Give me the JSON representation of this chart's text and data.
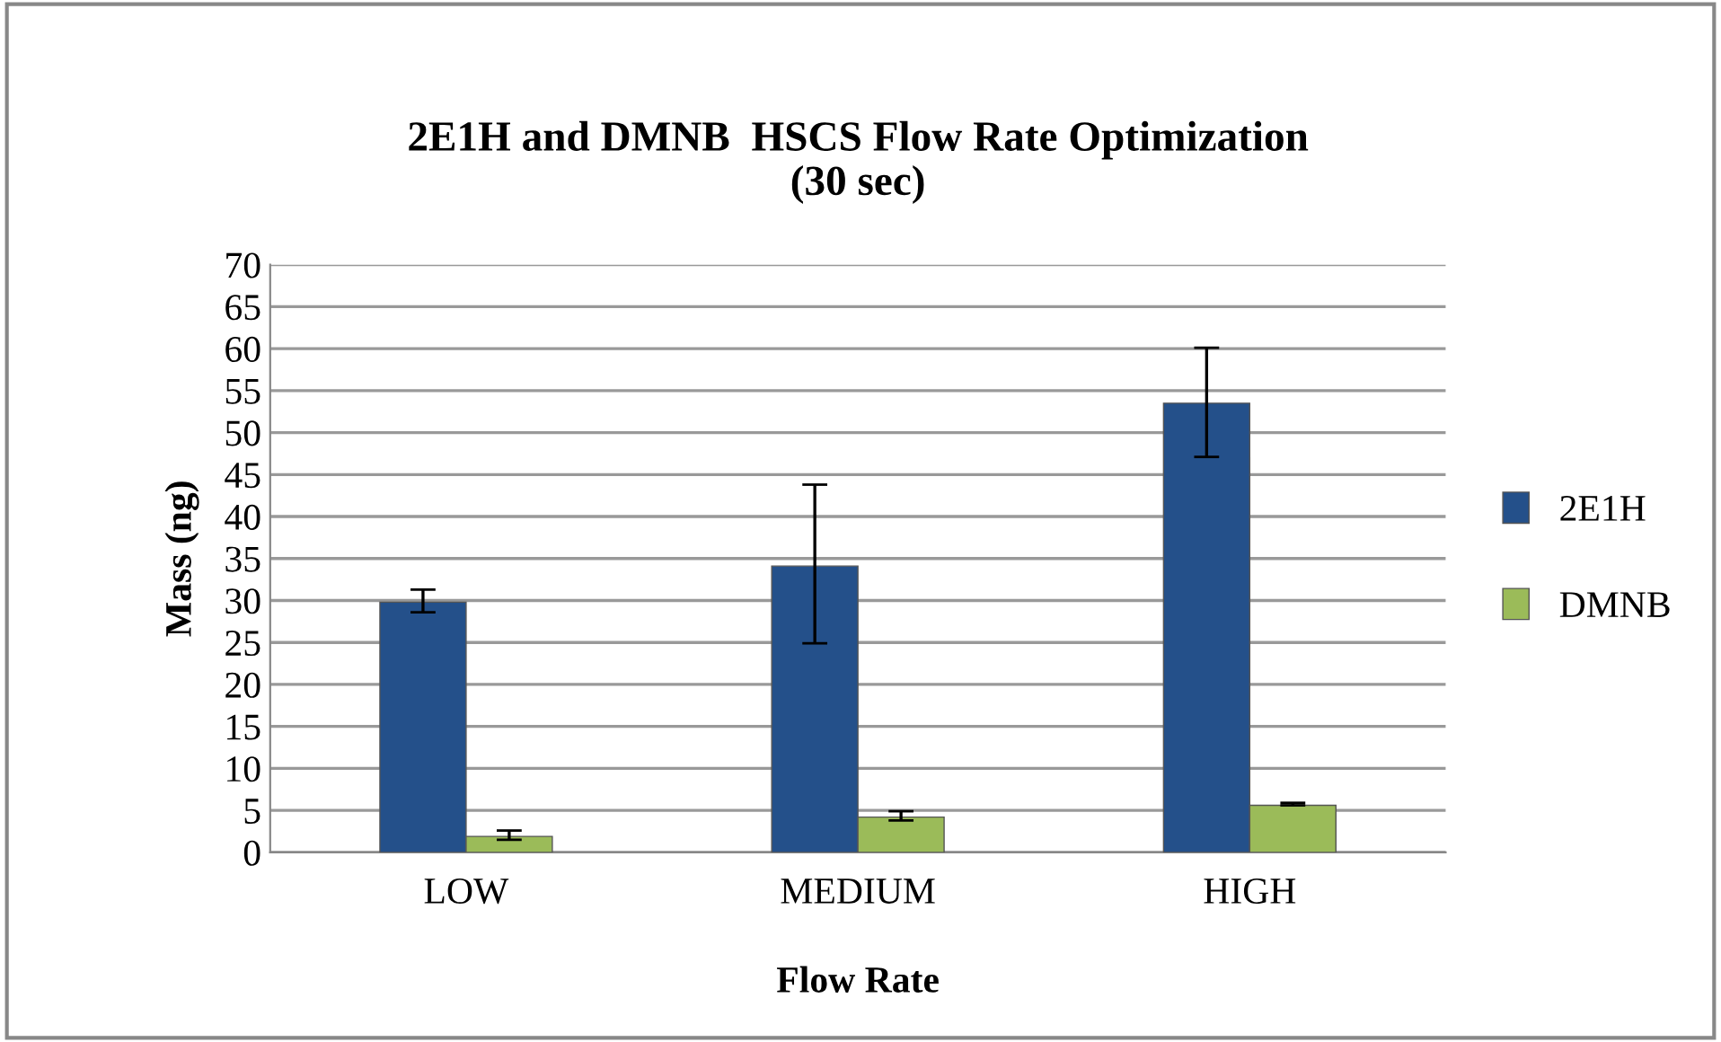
{
  "chart_data": {
    "type": "bar",
    "title": "2E1H and DMNB  HSCS Flow Rate Optimization\n(30 sec)",
    "xlabel": "Flow Rate",
    "ylabel": "Mass (ng)",
    "categories": [
      "LOW",
      "MEDIUM",
      "HIGH"
    ],
    "series": [
      {
        "name": "2E1H",
        "color": "#24508a",
        "values": [
          29.8,
          34.1,
          53.5
        ],
        "errors": [
          [
            28.6,
            31.3
          ],
          [
            24.9,
            43.8
          ],
          [
            47.1,
            60.1
          ]
        ]
      },
      {
        "name": "DMNB",
        "color": "#9bbb59",
        "values": [
          1.9,
          4.2,
          5.6
        ],
        "errors": [
          [
            1.5,
            2.6
          ],
          [
            3.8,
            4.9
          ],
          [
            5.6,
            5.9
          ]
        ]
      }
    ],
    "ylim": [
      0,
      70
    ],
    "yticks": [
      0,
      5,
      10,
      15,
      20,
      25,
      30,
      35,
      40,
      45,
      50,
      55,
      60,
      65,
      70
    ],
    "grid": "y",
    "legend": "right"
  }
}
